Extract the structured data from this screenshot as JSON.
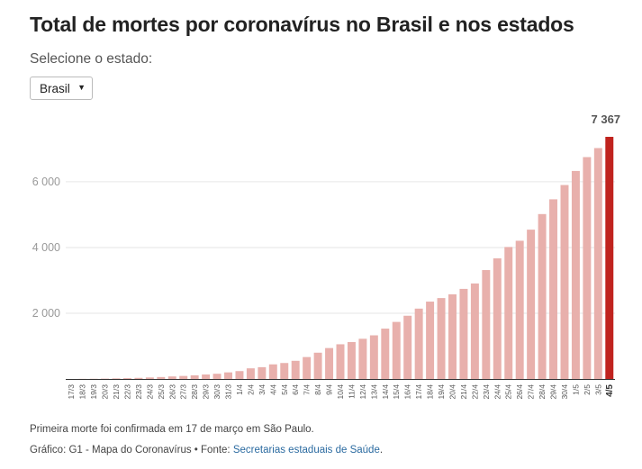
{
  "header": {
    "title": "Total de mortes por coronavírus no Brasil e nos estados",
    "subtitle": "Selecione o estado:"
  },
  "state_select": {
    "selected": "Brasil",
    "arrow_icon": "triangle-down-icon"
  },
  "footer": {
    "note": "Primeira morte foi confirmada em 17 de março em São Paulo.",
    "source_prefix": "Gráfico: G1 - Mapa do Coronavírus • Fonte: ",
    "source_link": "Secretarias estaduais de Saúde",
    "source_suffix": "."
  },
  "colors": {
    "bar": "#e8b0ac",
    "highlight": "#c0231e",
    "grid": "#e6e6e6",
    "axis": "#333333",
    "tick_text": "#999999"
  },
  "chart_data": {
    "type": "bar",
    "categories": [
      "17/3",
      "18/3",
      "19/3",
      "20/3",
      "21/3",
      "22/3",
      "23/3",
      "24/3",
      "25/3",
      "26/3",
      "27/3",
      "28/3",
      "29/3",
      "30/3",
      "31/3",
      "1/4",
      "2/4",
      "3/4",
      "4/4",
      "5/4",
      "6/4",
      "7/4",
      "8/4",
      "9/4",
      "10/4",
      "11/4",
      "12/4",
      "13/4",
      "14/4",
      "15/4",
      "16/4",
      "17/4",
      "18/4",
      "19/4",
      "20/4",
      "21/4",
      "22/4",
      "23/4",
      "24/4",
      "25/4",
      "26/4",
      "27/4",
      "28/4",
      "29/4",
      "30/4",
      "1/5",
      "2/5",
      "3/5",
      "4/5"
    ],
    "values": [
      1,
      4,
      6,
      11,
      18,
      25,
      34,
      46,
      59,
      77,
      92,
      111,
      136,
      159,
      201,
      240,
      324,
      359,
      445,
      486,
      553,
      667,
      800,
      941,
      1056,
      1124,
      1223,
      1328,
      1532,
      1736,
      1924,
      2141,
      2354,
      2462,
      2575,
      2741,
      2906,
      3313,
      3670,
      4016,
      4205,
      4543,
      5017,
      5466,
      5901,
      6329,
      6750,
      7025,
      7367
    ],
    "highlight": {
      "category": "4/5",
      "label": "7 367"
    },
    "y_ticks": [
      2000,
      4000,
      6000
    ],
    "y_tick_labels": [
      "2 000",
      "4 000",
      "6 000"
    ],
    "ylim": [
      0,
      7367
    ],
    "grid": true
  }
}
